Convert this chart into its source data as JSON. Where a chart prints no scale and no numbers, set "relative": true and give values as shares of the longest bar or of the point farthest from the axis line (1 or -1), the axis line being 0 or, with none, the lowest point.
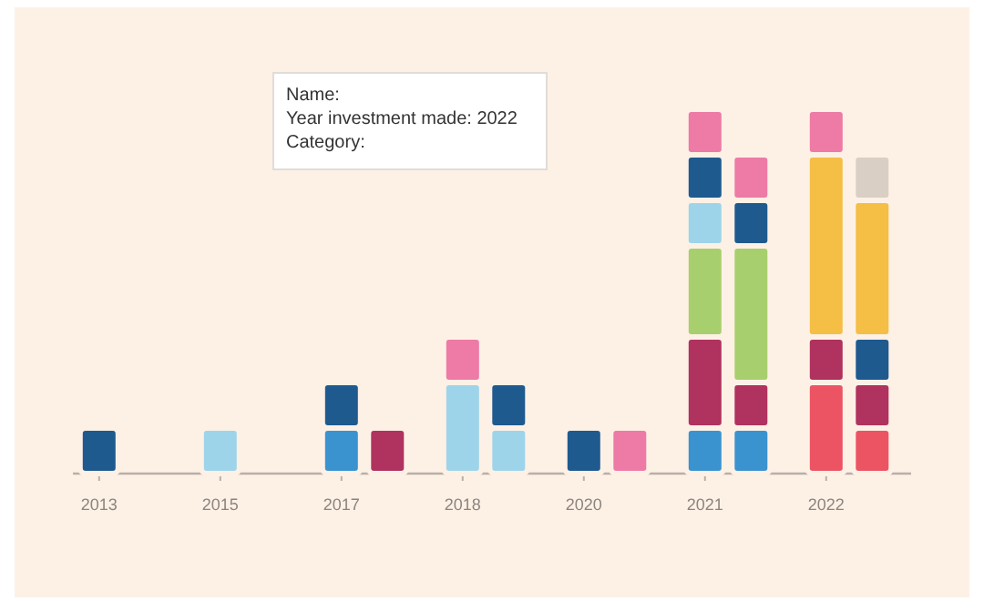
{
  "chart_data": {
    "type": "bar",
    "stacked": true,
    "relative": true,
    "categories": [
      "2013",
      null,
      "2015",
      null,
      "2017",
      null,
      "2018",
      null,
      "2020",
      null,
      "2021",
      null,
      "2022",
      null
    ],
    "series": [
      {
        "color": "#3a93cf",
        "values": [
          null,
          null,
          null,
          null,
          0.125,
          null,
          null,
          null,
          null,
          null,
          0.125,
          0.125,
          null,
          null
        ]
      },
      {
        "color": "#ec5464",
        "values": [
          null,
          null,
          null,
          null,
          null,
          null,
          null,
          null,
          null,
          null,
          null,
          null,
          0.25,
          0.125
        ]
      },
      {
        "color": "#b0325f",
        "values": [
          null,
          null,
          null,
          null,
          null,
          0.125,
          null,
          null,
          null,
          null,
          0.25,
          0.125,
          0.125,
          0.125
        ]
      },
      {
        "color": "#a8cf6d",
        "values": [
          null,
          null,
          null,
          null,
          null,
          null,
          null,
          null,
          null,
          null,
          0.25,
          0.375,
          null,
          null
        ]
      },
      {
        "color": "#9dd4ea",
        "values": [
          null,
          null,
          0.125,
          null,
          null,
          null,
          0.25,
          0.125,
          null,
          null,
          0.125,
          null,
          null,
          null
        ]
      },
      {
        "color": "#1f5a8f",
        "values": [
          0.125,
          null,
          null,
          null,
          0.125,
          null,
          null,
          0.125,
          0.125,
          null,
          0.125,
          0.125,
          null,
          0.125
        ]
      },
      {
        "color": "#f5be45",
        "values": [
          null,
          null,
          null,
          null,
          null,
          null,
          null,
          null,
          null,
          null,
          null,
          null,
          0.5,
          0.375
        ]
      },
      {
        "color": "#d9cfc4",
        "values": [
          null,
          null,
          null,
          null,
          null,
          null,
          null,
          null,
          null,
          null,
          null,
          null,
          null,
          0.125
        ]
      },
      {
        "color": "#ee7aa6",
        "values": [
          null,
          null,
          null,
          null,
          null,
          null,
          0.125,
          null,
          null,
          0.125,
          0.125,
          0.125,
          0.125,
          null
        ]
      }
    ],
    "annotations": [
      "Name:",
      "Year investment made: 2022",
      "Category:"
    ]
  }
}
